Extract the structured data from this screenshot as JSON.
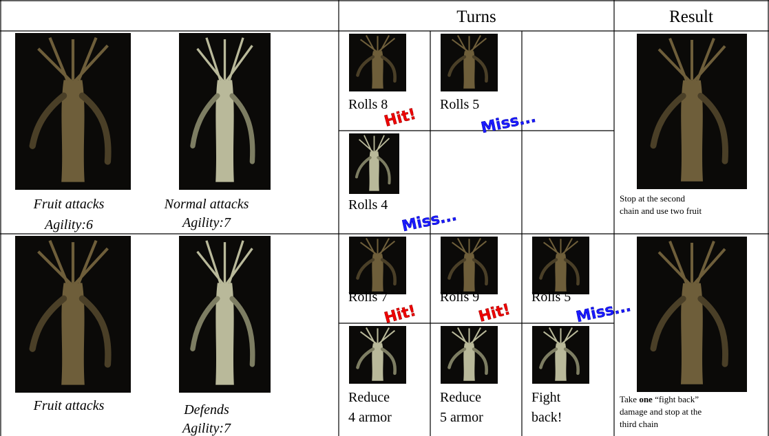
{
  "table": {
    "header": {
      "turns": "Turns",
      "result": "Result"
    },
    "rows": [
      {
        "left": [
          {
            "lines": [
              "Fruit attacks",
              "Agility:6"
            ]
          },
          {
            "lines": [
              "Normal attacks",
              "Agility:7"
            ]
          }
        ],
        "turns": [
          [
            {
              "lines": [
                "Rolls 8"
              ]
            },
            {
              "lines": [
                "Rolls 5"
              ]
            }
          ],
          [
            {
              "lines": [
                "Rolls 4"
              ]
            }
          ]
        ],
        "markers": [
          "Hit!",
          "Miss...",
          "Miss..."
        ],
        "result": {
          "lines": [
            "Stop at the second",
            "chain and use two fruit"
          ]
        }
      },
      {
        "left": [
          {
            "lines": [
              "Fruit attacks"
            ]
          },
          {
            "lines": [
              "Defends",
              "Agility:7"
            ]
          }
        ],
        "turns": [
          [
            {
              "lines": [
                "Rolls 7"
              ]
            },
            {
              "lines": [
                "Rolls 9"
              ]
            },
            {
              "lines": [
                "Rolls 5"
              ]
            }
          ],
          [
            {
              "lines": [
                "Reduce",
                "4 armor"
              ]
            },
            {
              "lines": [
                "Reduce",
                "5 armor"
              ]
            },
            {
              "lines": [
                "Fight",
                "back!"
              ]
            }
          ]
        ],
        "markers": [
          "Hit!",
          "Hit!",
          "Miss..."
        ],
        "result": {
          "parts": [
            "Take",
            "one",
            "“fight back”",
            "damage and stop at the",
            "third chain"
          ]
        }
      }
    ]
  }
}
